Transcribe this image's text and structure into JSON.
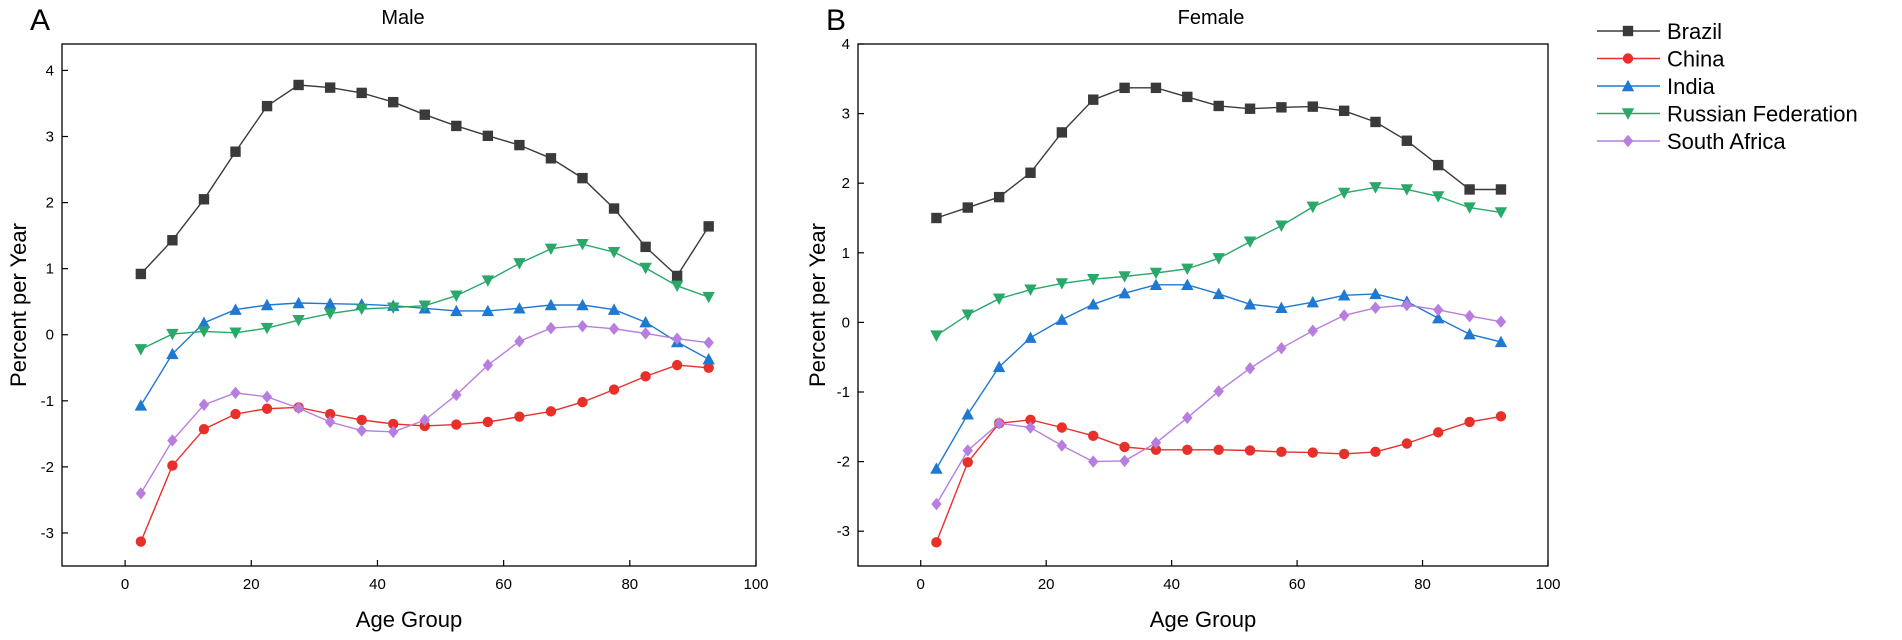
{
  "legend": [
    {
      "name": "Brazil",
      "color": "#3a3a3a",
      "marker": "square"
    },
    {
      "name": "China",
      "color": "#e8302b",
      "marker": "circle"
    },
    {
      "name": "India",
      "color": "#1f78d1",
      "marker": "triangle-up"
    },
    {
      "name": "Russian Federation",
      "color": "#2aa86a",
      "marker": "triangle-down"
    },
    {
      "name": "South Africa",
      "color": "#b77ee0",
      "marker": "diamond"
    }
  ],
  "chart_data": [
    {
      "type": "line",
      "panel_label": "A",
      "title": "Male",
      "xlabel": "Age Group",
      "ylabel": "Percent per Year",
      "xlim": [
        -10,
        100
      ],
      "ylim": [
        -3.5,
        4.4
      ],
      "xticks": [
        0,
        20,
        40,
        60,
        80,
        100
      ],
      "yticks": [
        -3,
        -2,
        -1,
        0,
        1,
        2,
        3,
        4
      ],
      "x": [
        2.5,
        7.5,
        12.5,
        17.5,
        22.5,
        27.5,
        32.5,
        37.5,
        42.5,
        47.5,
        52.5,
        57.5,
        62.5,
        67.5,
        72.5,
        77.5,
        82.5,
        87.5,
        92.5
      ],
      "series": [
        {
          "name": "Brazil",
          "values": [
            0.92,
            1.43,
            2.05,
            2.77,
            3.46,
            3.78,
            3.74,
            3.66,
            3.52,
            3.33,
            3.16,
            3.01,
            2.87,
            2.67,
            2.37,
            1.91,
            1.33,
            0.89,
            1.64
          ]
        },
        {
          "name": "China",
          "values": [
            -3.13,
            -1.98,
            -1.43,
            -1.2,
            -1.12,
            -1.1,
            -1.2,
            -1.29,
            -1.35,
            -1.38,
            -1.36,
            -1.32,
            -1.24,
            -1.16,
            -1.02,
            -0.83,
            -0.63,
            -0.46,
            -0.5
          ]
        },
        {
          "name": "India",
          "values": [
            -1.07,
            -0.29,
            0.18,
            0.38,
            0.45,
            0.48,
            0.47,
            0.46,
            0.44,
            0.4,
            0.36,
            0.36,
            0.4,
            0.45,
            0.45,
            0.38,
            0.19,
            -0.11,
            -0.37
          ]
        },
        {
          "name": "Russian Federation",
          "values": [
            -0.22,
            0.01,
            0.05,
            0.03,
            0.1,
            0.22,
            0.32,
            0.39,
            0.41,
            0.44,
            0.59,
            0.82,
            1.08,
            1.3,
            1.37,
            1.25,
            1.01,
            0.74,
            0.57
          ]
        },
        {
          "name": "South Africa",
          "values": [
            -2.4,
            -1.6,
            -1.06,
            -0.88,
            -0.94,
            -1.11,
            -1.32,
            -1.45,
            -1.47,
            -1.29,
            -0.91,
            -0.46,
            -0.1,
            0.1,
            0.13,
            0.09,
            0.02,
            -0.06,
            -0.12
          ]
        }
      ]
    },
    {
      "type": "line",
      "panel_label": "B",
      "title": "Female",
      "xlabel": "Age Group",
      "ylabel": "Percent per Year",
      "xlim": [
        -10,
        100
      ],
      "ylim": [
        -3.5,
        4.0
      ],
      "xticks": [
        0,
        20,
        40,
        60,
        80,
        100
      ],
      "yticks": [
        -3,
        -2,
        -1,
        0,
        1,
        2,
        3,
        4
      ],
      "x": [
        2.5,
        7.5,
        12.5,
        17.5,
        22.5,
        27.5,
        32.5,
        37.5,
        42.5,
        47.5,
        52.5,
        57.5,
        62.5,
        67.5,
        72.5,
        77.5,
        82.5,
        87.5,
        92.5
      ],
      "series": [
        {
          "name": "Brazil",
          "values": [
            1.5,
            1.65,
            1.8,
            2.15,
            2.73,
            3.2,
            3.37,
            3.37,
            3.24,
            3.11,
            3.07,
            3.09,
            3.1,
            3.04,
            2.88,
            2.61,
            2.26,
            1.91,
            1.91
          ]
        },
        {
          "name": "China",
          "values": [
            -3.16,
            -2.01,
            -1.45,
            -1.4,
            -1.51,
            -1.63,
            -1.79,
            -1.83,
            -1.83,
            -1.83,
            -1.84,
            -1.86,
            -1.87,
            -1.89,
            -1.86,
            -1.74,
            -1.58,
            -1.43,
            -1.35
          ]
        },
        {
          "name": "India",
          "values": [
            -2.1,
            -1.32,
            -0.64,
            -0.22,
            0.04,
            0.26,
            0.42,
            0.54,
            0.54,
            0.41,
            0.26,
            0.21,
            0.29,
            0.39,
            0.41,
            0.3,
            0.06,
            -0.17,
            -0.28
          ]
        },
        {
          "name": "Russian Federation",
          "values": [
            -0.19,
            0.11,
            0.34,
            0.47,
            0.56,
            0.62,
            0.66,
            0.71,
            0.77,
            0.92,
            1.16,
            1.39,
            1.66,
            1.86,
            1.94,
            1.91,
            1.81,
            1.65,
            1.58
          ]
        },
        {
          "name": "South Africa",
          "values": [
            -2.61,
            -1.84,
            -1.45,
            -1.51,
            -1.77,
            -2.0,
            -1.99,
            -1.73,
            -1.37,
            -0.99,
            -0.66,
            -0.37,
            -0.12,
            0.1,
            0.21,
            0.25,
            0.18,
            0.09,
            0.01
          ]
        }
      ]
    }
  ]
}
